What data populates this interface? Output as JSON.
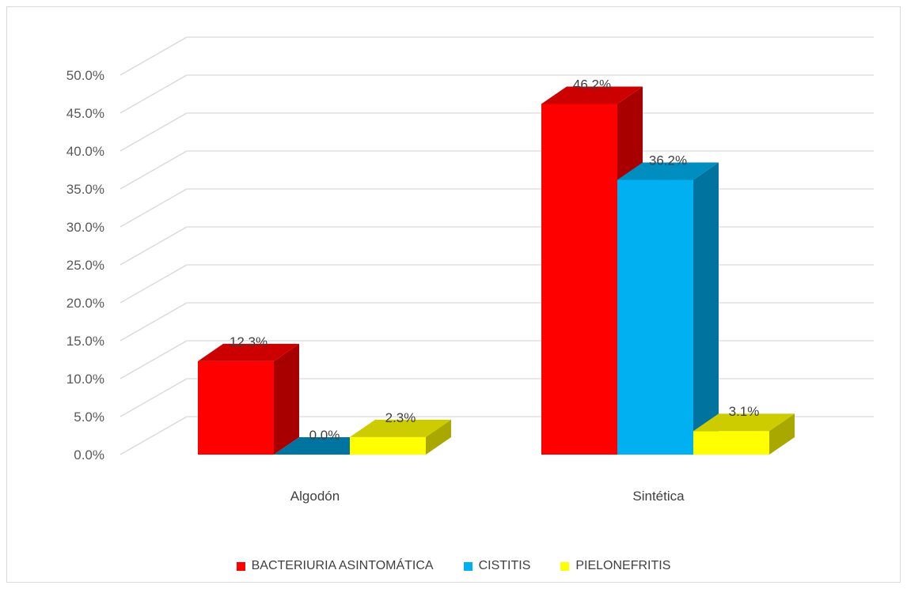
{
  "chart_data": {
    "type": "bar",
    "title": "",
    "xlabel": "",
    "ylabel": "",
    "categories": [
      "Algodón",
      "Sintética"
    ],
    "series": [
      {
        "name": "BACTERIURIA ASINTOMÁTICA",
        "values": [
          12.3,
          46.2
        ],
        "labels": [
          "12.3%",
          "46.2%"
        ],
        "color": "#ff0000"
      },
      {
        "name": "CISTITIS",
        "values": [
          0.0,
          36.2
        ],
        "labels": [
          "0.0%",
          "36.2%"
        ],
        "color": "#00b0f0"
      },
      {
        "name": "PIELONEFRITIS",
        "values": [
          2.3,
          3.1
        ],
        "labels": [
          "2.3%",
          "3.1%"
        ],
        "color": "#ffff00"
      }
    ],
    "ylim": [
      0,
      50
    ],
    "y_ticks": [
      "0.0%",
      "5.0%",
      "10.0%",
      "15.0%",
      "20.0%",
      "25.0%",
      "30.0%",
      "35.0%",
      "40.0%",
      "45.0%",
      "50.0%"
    ],
    "grid": true,
    "legend_position": "bottom",
    "style": "3d-clustered-column"
  }
}
